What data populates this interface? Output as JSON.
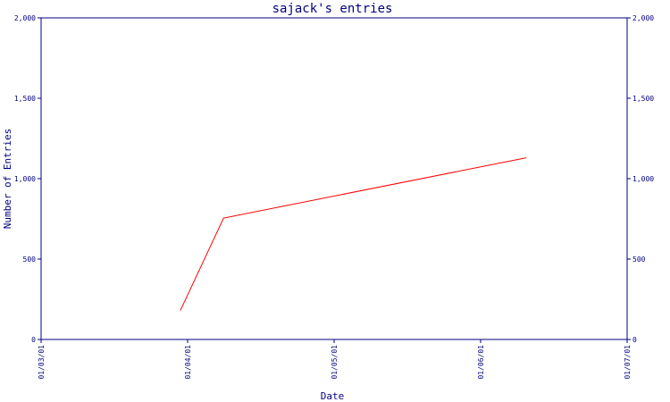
{
  "chart_data": {
    "type": "line",
    "title": "sajack's entries",
    "xlabel": "Date",
    "ylabel": "Number of Entries",
    "x_ticks": [
      "01/03/01",
      "01/04/01",
      "01/05/01",
      "01/06/01",
      "01/07/01"
    ],
    "y_ticks": [
      "0",
      "500",
      "1,000",
      "1,500",
      "2,000"
    ],
    "y_tick_values": [
      0,
      500,
      1000,
      1500,
      2000
    ],
    "ylim": [
      0,
      2000
    ],
    "xlim": [
      "2001-03-01",
      "2001-07-01"
    ],
    "grid": false,
    "series": [
      {
        "color": "#ff0000",
        "x": [
          "2001-03-30",
          "2001-04-08",
          "2001-06-10"
        ],
        "y": [
          180,
          755,
          1130
        ]
      }
    ]
  },
  "colors": {
    "axis": "#000080",
    "line": "#ff0000"
  }
}
